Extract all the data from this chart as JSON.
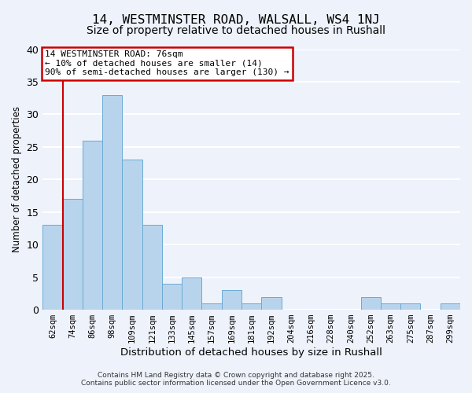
{
  "title": "14, WESTMINSTER ROAD, WALSALL, WS4 1NJ",
  "subtitle": "Size of property relative to detached houses in Rushall",
  "xlabel": "Distribution of detached houses by size in Rushall",
  "ylabel": "Number of detached properties",
  "bin_labels": [
    "62sqm",
    "74sqm",
    "86sqm",
    "98sqm",
    "109sqm",
    "121sqm",
    "133sqm",
    "145sqm",
    "157sqm",
    "169sqm",
    "181sqm",
    "192sqm",
    "204sqm",
    "216sqm",
    "228sqm",
    "240sqm",
    "252sqm",
    "263sqm",
    "275sqm",
    "287sqm",
    "299sqm"
  ],
  "bar_values": [
    13,
    17,
    26,
    33,
    23,
    13,
    4,
    5,
    1,
    3,
    1,
    2,
    0,
    0,
    0,
    0,
    2,
    1,
    1,
    0,
    1
  ],
  "bar_color": "#b8d4ec",
  "bar_edge_color": "#6aaad4",
  "vline_x_index": 1,
  "vline_color": "#cc0000",
  "annotation_box_text": "14 WESTMINSTER ROAD: 76sqm\n← 10% of detached houses are smaller (14)\n90% of semi-detached houses are larger (130) →",
  "annotation_box_color": "#cc0000",
  "ylim": [
    0,
    40
  ],
  "yticks": [
    0,
    5,
    10,
    15,
    20,
    25,
    30,
    35,
    40
  ],
  "bg_color": "#eef2fb",
  "grid_color": "#ffffff",
  "footer_line1": "Contains HM Land Registry data © Crown copyright and database right 2025.",
  "footer_line2": "Contains public sector information licensed under the Open Government Licence v3.0.",
  "title_fontsize": 11.5,
  "subtitle_fontsize": 10,
  "xlabel_fontsize": 9.5,
  "ylabel_fontsize": 8.5,
  "ann_fontsize": 8.0,
  "tick_fontsize": 7.5,
  "footer_fontsize": 6.5
}
